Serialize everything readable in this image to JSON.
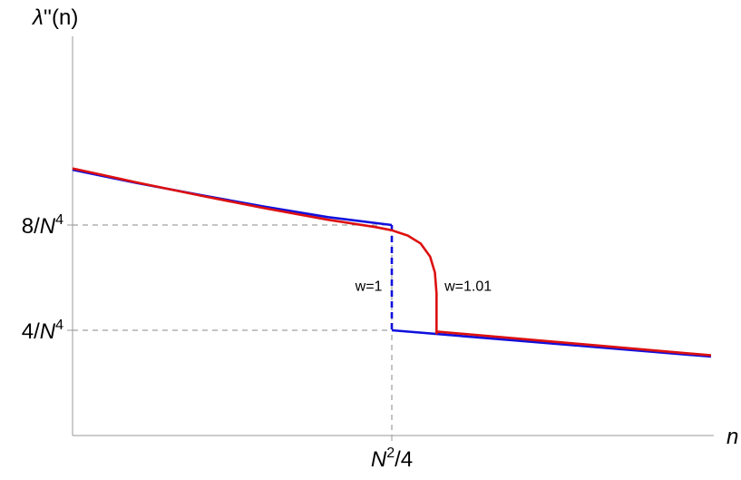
{
  "chart_data": {
    "type": "line",
    "title": "",
    "xlabel": "n",
    "ylabel": "λ''(n)",
    "ylabel_parts": {
      "symbol": "λ",
      "rest": "''(n)"
    },
    "xlim": [
      0,
      2
    ],
    "ylim": [
      0,
      10
    ],
    "x_tick_label_parts": {
      "base": "N",
      "sup": "2",
      "rest": "/4"
    },
    "x_tick_value": 1,
    "y_tick_label_parts": [
      {
        "prefix": "4/",
        "base": "N",
        "sup": "4",
        "value": 4
      },
      {
        "prefix": "8/",
        "base": "N",
        "sup": "4",
        "value": 8
      }
    ],
    "grid": false,
    "series": [
      {
        "name": "w=1",
        "color": "#1010dd",
        "segments": [
          {
            "style": "solid",
            "x": [
              0,
              0.2,
              0.4,
              0.6,
              0.8,
              1.0
            ],
            "y": [
              10.1,
              9.6,
              9.14,
              8.7,
              8.3,
              8.0
            ]
          },
          {
            "style": "dashed",
            "x": [
              1.0,
              1.0
            ],
            "y": [
              8.0,
              4.0
            ]
          },
          {
            "style": "solid",
            "x": [
              1.0,
              2.0
            ],
            "y": [
              4.0,
              3.0
            ]
          }
        ]
      },
      {
        "name": "w=1.01",
        "color": "#dd1010",
        "segments": [
          {
            "style": "solid",
            "x": [
              0,
              0.2,
              0.4,
              0.6,
              0.8,
              0.95,
              1.0,
              1.05,
              1.09,
              1.12,
              1.135,
              1.14,
              1.14
            ],
            "y": [
              10.15,
              9.62,
              9.12,
              8.64,
              8.2,
              7.92,
              7.8,
              7.6,
              7.3,
              6.8,
              6.2,
              5.4,
              3.85
            ]
          },
          {
            "style": "solid",
            "x": [
              1.14,
              2.0
            ],
            "y": [
              3.95,
              3.05
            ]
          }
        ]
      }
    ],
    "annotations": [
      {
        "text": "w=1",
        "x": 0.97,
        "y": 5.7,
        "anchor": "end"
      },
      {
        "text": "w=1.01",
        "x": 1.165,
        "y": 5.7,
        "anchor": "start"
      }
    ]
  }
}
